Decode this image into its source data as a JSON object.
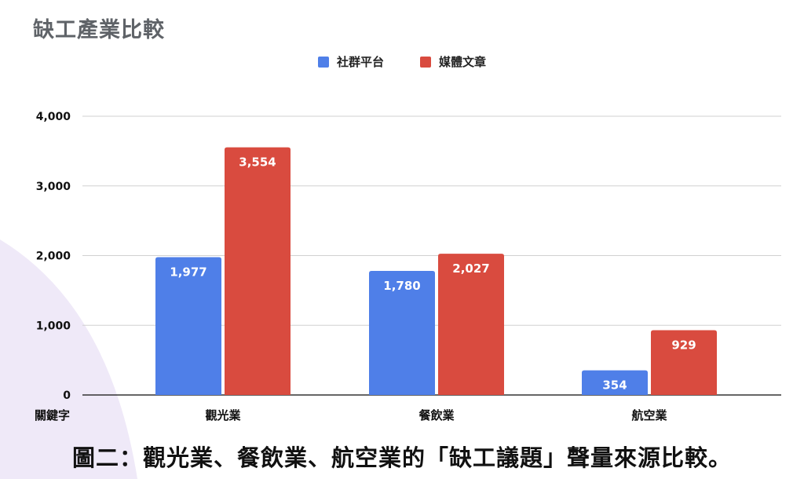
{
  "chart_data": {
    "type": "bar",
    "title": "缺工產業比較",
    "xlabel": "關鍵字",
    "ylabel": "",
    "categories": [
      "觀光業",
      "餐飲業",
      "航空業"
    ],
    "series": [
      {
        "name": "社群平台",
        "color": "#4f7fe8",
        "values": [
          1977,
          1780,
          354
        ]
      },
      {
        "name": "媒體文章",
        "color": "#d94b3f",
        "values": [
          3554,
          2027,
          929
        ]
      }
    ],
    "ylim": [
      0,
      4000
    ],
    "yticks": [
      0,
      1000,
      2000,
      3000,
      4000
    ],
    "ytick_labels": [
      "0",
      "1,000",
      "2,000",
      "3,000",
      "4,000"
    ],
    "data_labels": [
      [
        "1,977",
        "1,780",
        "354"
      ],
      [
        "3,554",
        "2,027",
        "929"
      ]
    ],
    "grid": true,
    "legend": "top-center"
  },
  "caption": "圖二：觀光業、餐飲業、航空業的「缺工議題」聲量來源比較。",
  "decoration_color": "#efe9f8"
}
